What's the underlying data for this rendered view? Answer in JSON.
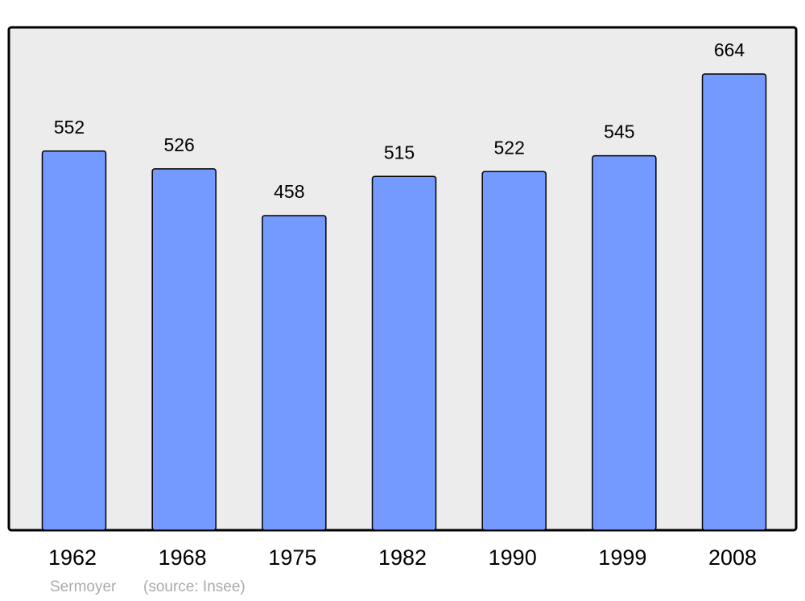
{
  "chart_data": {
    "type": "bar",
    "categories": [
      "1962",
      "1968",
      "1975",
      "1982",
      "1990",
      "1999",
      "2008"
    ],
    "values": [
      552,
      526,
      458,
      515,
      522,
      545,
      664
    ],
    "color": "#7499ff",
    "background": "#ececec",
    "ylim": [
      0,
      732
    ],
    "grid": false,
    "name": "Sermoyer",
    "source": "(source: Insee)"
  }
}
